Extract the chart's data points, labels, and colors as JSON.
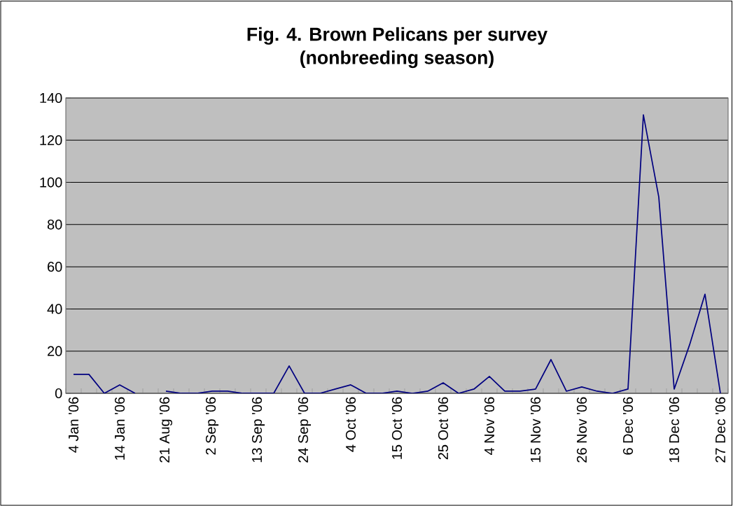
{
  "chart_data": {
    "type": "line",
    "title": "Fig. 4. Brown Pelicans per survey\n(nonbreeding season)",
    "categories": [
      "4 Jan '06",
      null,
      null,
      "14 Jan '06",
      null,
      null,
      "21 Aug '06",
      null,
      null,
      "2 Sep '06",
      null,
      null,
      "13 Sep '06",
      null,
      null,
      "24 Sep '06",
      null,
      null,
      "4 Oct '06",
      null,
      null,
      "15 Oct '06",
      null,
      null,
      "25 Oct '06",
      null,
      null,
      "4 Nov '06",
      null,
      null,
      "15 Nov '06",
      null,
      null,
      "26 Nov '06",
      null,
      null,
      "6 Dec '06",
      null,
      null,
      "18 Dec '06",
      null,
      null,
      "27 Dec '06"
    ],
    "values": [
      9,
      9,
      0,
      4,
      0,
      null,
      1,
      0,
      0,
      1,
      1,
      0,
      0,
      0,
      13,
      0,
      0,
      2,
      4,
      0,
      0,
      1,
      0,
      1,
      5,
      0,
      2,
      8,
      1,
      1,
      2,
      16,
      1,
      3,
      1,
      0,
      2,
      132,
      93,
      2,
      23,
      47,
      0
    ],
    "color": "#000080",
    "ylim": [
      0,
      140
    ],
    "yticks": [
      0,
      20,
      40,
      60,
      80,
      100,
      120,
      140
    ],
    "grid": "y",
    "marker": "none",
    "line_style": "solid"
  }
}
